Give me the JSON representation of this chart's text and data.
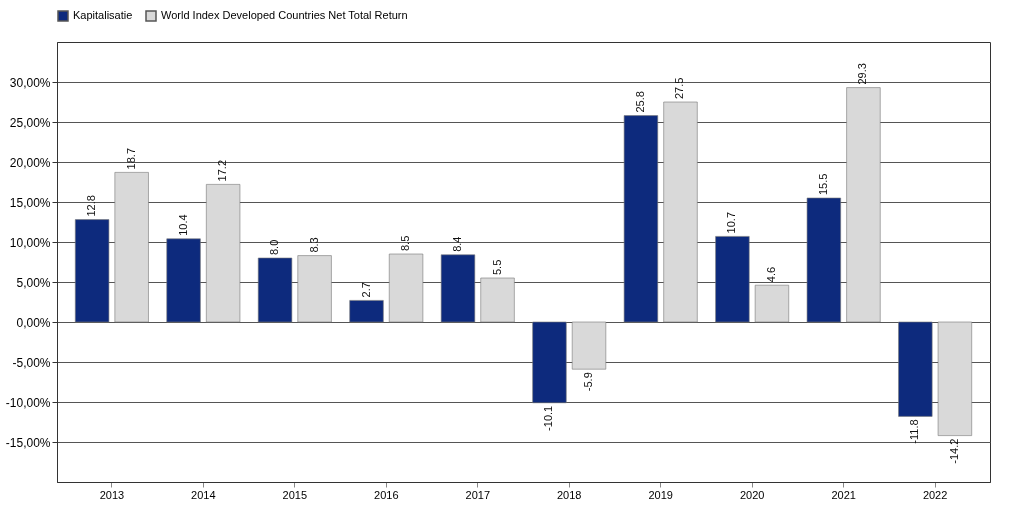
{
  "chart_data": {
    "type": "bar",
    "categories": [
      "2013",
      "2014",
      "2015",
      "2016",
      "2017",
      "2018",
      "2019",
      "2020",
      "2021",
      "2022"
    ],
    "series": [
      {
        "name": "Kapitalisatie",
        "color": "#0d2a7d",
        "values": [
          12.8,
          10.4,
          8.0,
          2.7,
          8.4,
          -10.1,
          25.8,
          10.7,
          15.5,
          -11.8
        ],
        "value_labels": [
          "12.8",
          "10.4",
          "8.0",
          "2.7",
          "8.4",
          "-10.1",
          "25.8",
          "10.7",
          "15.5",
          "-11.8"
        ]
      },
      {
        "name": "World Index Developed Countries Net Total Return",
        "color": "#d9d9d9",
        "values": [
          18.7,
          17.2,
          8.3,
          8.5,
          5.5,
          -5.9,
          27.5,
          4.6,
          29.3,
          -14.2
        ],
        "value_labels": [
          "18.7",
          "17.2",
          "8.3",
          "8.5",
          "5.5",
          "-5.9",
          "27.5",
          "4.6",
          "29.3",
          "-14.2"
        ]
      }
    ],
    "ylim": [
      -20,
      35
    ],
    "yticks": [
      {
        "value": -15,
        "label": "-15,00%"
      },
      {
        "value": -10,
        "label": "-10,00%"
      },
      {
        "value": -5,
        "label": "-5,00%"
      },
      {
        "value": 0,
        "label": "0,00%"
      },
      {
        "value": 5,
        "label": "5,00%"
      },
      {
        "value": 10,
        "label": "10,00%"
      },
      {
        "value": 15,
        "label": "15,00%"
      },
      {
        "value": 20,
        "label": "20,00%"
      },
      {
        "value": 25,
        "label": "25,00%"
      },
      {
        "value": 30,
        "label": "30,00%"
      }
    ],
    "grid": "y",
    "legend": "top"
  }
}
